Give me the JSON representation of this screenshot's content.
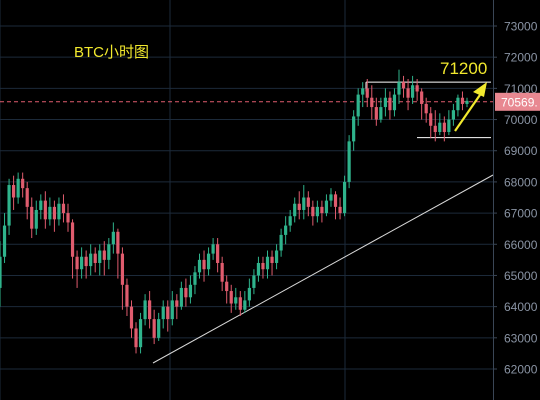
{
  "chart_data": {
    "type": "candlestick",
    "title": "BTC小时图",
    "annotation": "71200",
    "current_price_label": "70569.",
    "current_price": 70569,
    "y_range": [
      61800,
      73500
    ],
    "y_ticks": [
      62000,
      63000,
      64000,
      65000,
      66000,
      67000,
      68000,
      69000,
      70000,
      71000,
      72000,
      73000
    ],
    "y_tick_labels": [
      "62000",
      "63000",
      "64000",
      "65000",
      "66000",
      "67000",
      "68000",
      "69000",
      "70000",
      "71000",
      "72000",
      "73000"
    ],
    "grid": true,
    "colors": {
      "up": "#2fb38c",
      "down": "#e05c6e",
      "trendline": "#d8d8d8",
      "arrow": "#f2e92e",
      "title": "#f2e92e",
      "price_line": "#e05c6e",
      "box": "#ffffff"
    },
    "candles": [
      [
        64600,
        65600,
        64000,
        66100
      ],
      [
        65600,
        66600,
        65400,
        67000
      ],
      [
        66600,
        67900,
        66300,
        68100
      ],
      [
        67900,
        67500,
        67100,
        68200
      ],
      [
        67500,
        68100,
        67300,
        68300
      ],
      [
        68100,
        67800,
        67500,
        68300
      ],
      [
        67800,
        67200,
        66800,
        68000
      ],
      [
        67200,
        66500,
        66200,
        67500
      ],
      [
        66500,
        67100,
        66300,
        67400
      ],
      [
        67100,
        67400,
        66800,
        67600
      ],
      [
        67400,
        66800,
        66500,
        67700
      ],
      [
        66800,
        67200,
        66600,
        67500
      ],
      [
        67200,
        66800,
        66400,
        67400
      ],
      [
        66800,
        67300,
        66600,
        67500
      ],
      [
        67300,
        67000,
        66700,
        67600
      ],
      [
        67000,
        66700,
        66400,
        67300
      ],
      [
        66700,
        65600,
        64900,
        66800
      ],
      [
        65600,
        65200,
        64600,
        65800
      ],
      [
        65200,
        65600,
        64900,
        65900
      ],
      [
        65600,
        65300,
        64900,
        65800
      ],
      [
        65300,
        65700,
        65000,
        66000
      ],
      [
        65700,
        65400,
        65100,
        65900
      ],
      [
        65400,
        65800,
        65000,
        66000
      ],
      [
        65800,
        65500,
        65000,
        66100
      ],
      [
        65500,
        66000,
        65200,
        66200
      ],
      [
        66000,
        66400,
        65700,
        66700
      ],
      [
        66400,
        65700,
        64900,
        66500
      ],
      [
        65700,
        64700,
        63900,
        65900
      ],
      [
        64700,
        64000,
        63700,
        64900
      ],
      [
        64000,
        63300,
        63000,
        64200
      ],
      [
        63300,
        62700,
        62500,
        63500
      ],
      [
        62700,
        63600,
        62500,
        63800
      ],
      [
        63600,
        64200,
        63400,
        64400
      ],
      [
        64200,
        63600,
        63300,
        64500
      ],
      [
        63600,
        63000,
        62800,
        63900
      ],
      [
        63000,
        63600,
        62900,
        63800
      ],
      [
        63600,
        64000,
        63300,
        64200
      ],
      [
        64000,
        63600,
        63200,
        64200
      ],
      [
        63600,
        64200,
        63400,
        64500
      ],
      [
        64200,
        64000,
        63600,
        64400
      ],
      [
        64000,
        64600,
        63900,
        64800
      ],
      [
        64600,
        64300,
        64000,
        64900
      ],
      [
        64300,
        64700,
        64100,
        65000
      ],
      [
        64700,
        65100,
        64400,
        65300
      ],
      [
        65100,
        65500,
        64900,
        65700
      ],
      [
        65500,
        65200,
        64800,
        65800
      ],
      [
        65200,
        65700,
        65000,
        65900
      ],
      [
        65700,
        66000,
        65500,
        66200
      ],
      [
        66000,
        65400,
        65100,
        66200
      ],
      [
        65400,
        64800,
        64500,
        65600
      ],
      [
        64800,
        64500,
        64100,
        65000
      ],
      [
        64500,
        64100,
        63800,
        64700
      ],
      [
        64100,
        64300,
        63900,
        64600
      ],
      [
        64300,
        63900,
        63700,
        64500
      ],
      [
        63900,
        64200,
        63800,
        64500
      ],
      [
        64200,
        64600,
        64000,
        64900
      ],
      [
        64600,
        65000,
        64400,
        65200
      ],
      [
        65000,
        65400,
        64800,
        65600
      ],
      [
        65400,
        65200,
        64900,
        65600
      ],
      [
        65200,
        65600,
        64900,
        65800
      ],
      [
        65600,
        65400,
        65000,
        65800
      ],
      [
        65400,
        65800,
        65200,
        66000
      ],
      [
        65800,
        66300,
        65600,
        66500
      ],
      [
        66300,
        66600,
        66000,
        66900
      ],
      [
        66600,
        66900,
        66400,
        67100
      ],
      [
        66900,
        67300,
        66700,
        67500
      ],
      [
        67300,
        67100,
        66800,
        67700
      ],
      [
        67100,
        67500,
        66800,
        67900
      ],
      [
        67500,
        67200,
        66900,
        67700
      ],
      [
        67200,
        66900,
        66600,
        67400
      ],
      [
        66900,
        67200,
        66700,
        67400
      ],
      [
        67200,
        67000,
        66700,
        67400
      ],
      [
        67000,
        67400,
        66900,
        67600
      ],
      [
        67400,
        67600,
        67200,
        67800
      ],
      [
        67600,
        67200,
        66800,
        67700
      ],
      [
        67200,
        67000,
        66800,
        67500
      ],
      [
        67000,
        68000,
        66900,
        68200
      ],
      [
        68000,
        69300,
        67800,
        69500
      ],
      [
        69300,
        70100,
        69000,
        70300
      ],
      [
        70100,
        70800,
        69800,
        71000
      ],
      [
        70800,
        71000,
        70400,
        71200
      ],
      [
        71000,
        70700,
        70400,
        71300
      ],
      [
        70700,
        70400,
        70000,
        71100
      ],
      [
        70400,
        70000,
        69800,
        70700
      ],
      [
        70000,
        70400,
        69900,
        70700
      ],
      [
        70400,
        70700,
        70100,
        71000
      ],
      [
        70700,
        70300,
        70000,
        70900
      ],
      [
        70300,
        70800,
        70100,
        71000
      ],
      [
        70800,
        71200,
        70500,
        71600
      ],
      [
        71200,
        71000,
        70700,
        71400
      ],
      [
        71000,
        70700,
        70300,
        71300
      ],
      [
        70700,
        71100,
        70500,
        71400
      ],
      [
        71100,
        70900,
        70600,
        71300
      ],
      [
        70900,
        70500,
        70000,
        71000
      ],
      [
        70500,
        70200,
        69900,
        70700
      ],
      [
        70200,
        69800,
        69400,
        70400
      ],
      [
        69800,
        69600,
        69300,
        70300
      ],
      [
        69600,
        69900,
        69500,
        70200
      ],
      [
        69900,
        69600,
        69300,
        70100
      ],
      [
        69600,
        70000,
        69500,
        70300
      ],
      [
        70000,
        70300,
        69800,
        70500
      ],
      [
        70300,
        70700,
        70100,
        70800
      ],
      [
        70700,
        70500,
        70300,
        70900
      ],
      [
        70500,
        70600,
        70400,
        70700
      ]
    ]
  }
}
